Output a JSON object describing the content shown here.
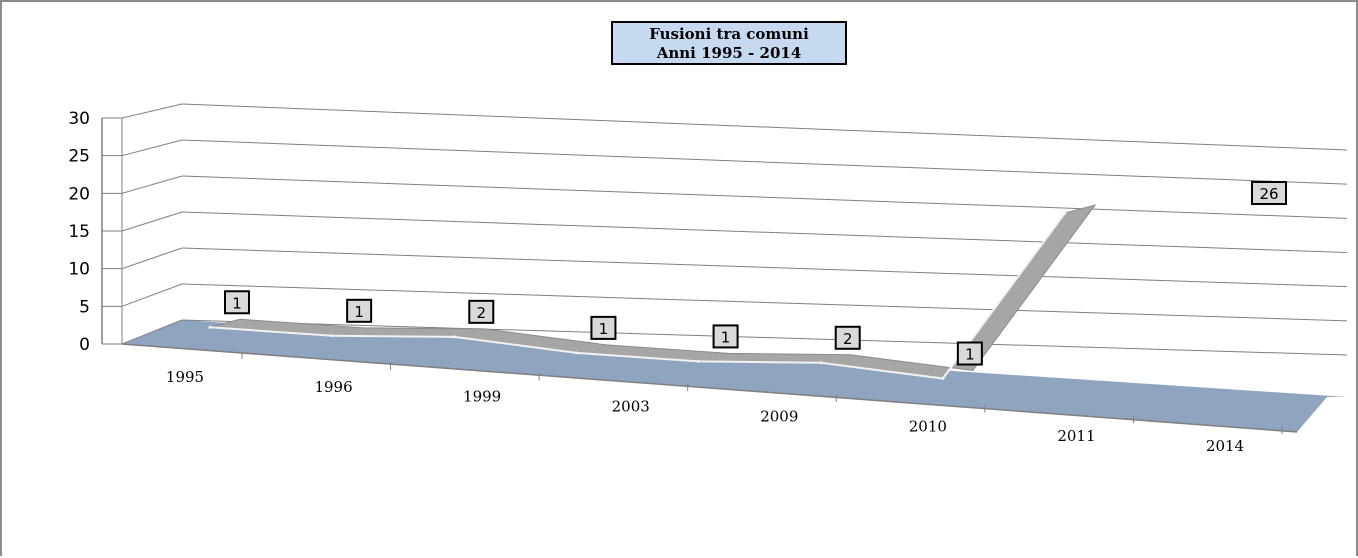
{
  "chart_data": {
    "type": "line",
    "title": "Fusioni tra comuni",
    "subtitle": "Anni 1995 - 2014",
    "categories": [
      "1995",
      "1996",
      "1999",
      "2003",
      "2009",
      "2010",
      "2011",
      "2014"
    ],
    "series": [
      {
        "values": [
          1,
          1,
          2,
          1,
          1,
          2,
          1,
          26
        ]
      }
    ],
    "data_labels": [
      "1",
      "1",
      "2",
      "1",
      "1",
      "2",
      "1",
      "26"
    ],
    "ylim": [
      0,
      30
    ],
    "yticks": [
      "0",
      "5",
      "10",
      "15",
      "20",
      "25",
      "30"
    ],
    "xlabel": "",
    "ylabel": "",
    "grid": true,
    "legend": "none",
    "style": "3d-line",
    "colors": {
      "floor": "#8fa4bf",
      "ribbon_top": "#a6a6a6",
      "ribbon_edge": "#f2f2f2",
      "title_bg": "#c6d9f1",
      "label_bg": "#d9d9d9",
      "gridline": "#7f7f7f"
    }
  }
}
